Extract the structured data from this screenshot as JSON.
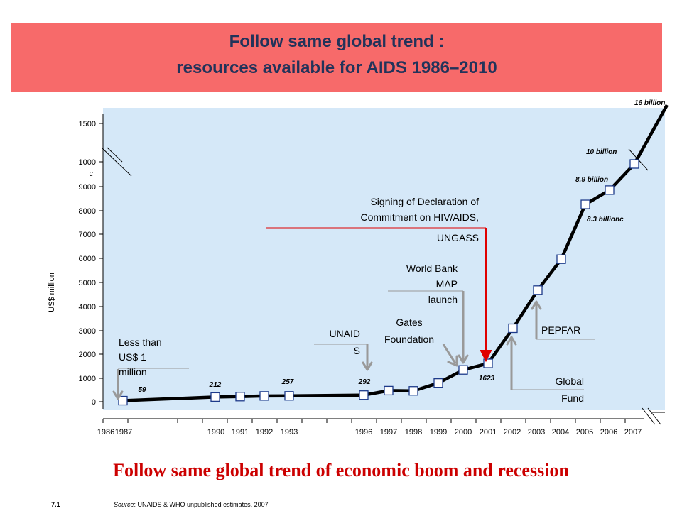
{
  "header": {
    "title_line1": "Follow same global trend :",
    "title_line2": "resources available for AIDS 1986–2010"
  },
  "subtitle": "Follow same global trend of economic boom and recession",
  "footer": {
    "slide_number": "7.1",
    "source_label": "Source",
    "source_text": ": UNAIDS & WHO unpublished estimates, 2007"
  },
  "colors": {
    "banner": "#f76a6a",
    "title": "#22335a",
    "plot_background": "#d5e8f8",
    "subtitle": "#cc0000",
    "annotation_arrow": "#999999",
    "ungass_arrow": "#e00000"
  },
  "chart_data": {
    "type": "line",
    "ylabel": "US$ million",
    "y_ticks": [
      "0",
      "1000",
      "2000",
      "3000",
      "4000",
      "5000",
      "6000",
      "7000",
      "8000",
      "9000",
      "1000",
      "c",
      "1500"
    ],
    "x_tick_labels": [
      "1986",
      "1987",
      "1990",
      "1991",
      "1992",
      "1993",
      "1996",
      "1997",
      "1998",
      "1999",
      "2000",
      "2001",
      "2002",
      "2003",
      "2004",
      "2005",
      "2006",
      "2007"
    ],
    "series": [
      {
        "points": [
          {
            "year": 1987,
            "value": 59
          },
          {
            "year": 1990,
            "value": 212
          },
          {
            "year": 1991,
            "value": 230
          },
          {
            "year": 1992,
            "value": 257
          },
          {
            "year": 1993,
            "value": 260
          },
          {
            "year": 1996,
            "value": 292
          },
          {
            "year": 1997,
            "value": 480
          },
          {
            "year": 1998,
            "value": 470
          },
          {
            "year": 1999,
            "value": 800
          },
          {
            "year": 2000,
            "value": 1350
          },
          {
            "year": 2001,
            "value": 1623
          },
          {
            "year": 2002,
            "value": 3100
          },
          {
            "year": 2003,
            "value": 4700
          },
          {
            "year": 2004,
            "value": 6000
          },
          {
            "year": 2005,
            "value": 8300
          },
          {
            "year": 2006,
            "value": 8900
          },
          {
            "year": 2007,
            "value": 10000
          }
        ]
      }
    ],
    "extension": {
      "value_label": "16 billion"
    },
    "data_labels": [
      {
        "year": 1987,
        "text": "59"
      },
      {
        "year": 1990,
        "text": "212"
      },
      {
        "year": 1992,
        "text": "257"
      },
      {
        "year": 1996,
        "text": "292"
      },
      {
        "year": 2001,
        "text": "1623"
      },
      {
        "year": 2005,
        "text": "8.3 billionc"
      },
      {
        "year": 2006,
        "text": "8.9 billion"
      },
      {
        "year": 2007,
        "text": "10 billion"
      }
    ],
    "annotations": {
      "less_than": [
        "Less than",
        "US$ 1",
        "million"
      ],
      "unaids": [
        "UNAID",
        "S"
      ],
      "gates": [
        "Gates",
        "Foundation"
      ],
      "world_bank": [
        "World Bank",
        "MAP",
        "launch"
      ],
      "ungass": [
        "Signing of Declaration of",
        "Commitment on HIV/AIDS,",
        "UNGASS"
      ],
      "pepfar": [
        "PEPFAR"
      ],
      "global_fund": [
        "Global",
        "Fund"
      ]
    }
  }
}
